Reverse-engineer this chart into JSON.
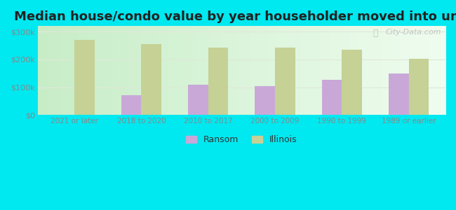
{
  "categories": [
    "2021 or later",
    "2018 to 2020",
    "2010 to 2017",
    "2000 to 2009",
    "1990 to 1999",
    "1989 or earlier"
  ],
  "ransom": [
    null,
    70000,
    110000,
    103000,
    127000,
    150000
  ],
  "illinois": [
    270000,
    255000,
    243000,
    243000,
    235000,
    202000
  ],
  "ransom_color": "#c9a8d8",
  "illinois_color": "#c5d195",
  "title": "Median house/condo value by year householder moved into unit",
  "legend_ransom": "Ransom",
  "legend_illinois": "Illinois",
  "yticks": [
    0,
    100000,
    200000,
    300000
  ],
  "ytick_labels": [
    "$0",
    "$100k",
    "$200k",
    "$300k"
  ],
  "ylim": [
    0,
    320000
  ],
  "background_outer": "#00e8f0",
  "bar_width": 0.3,
  "title_fontsize": 13,
  "watermark": "City-Data.com",
  "grid_color": "#e0e8d8",
  "tick_color": "#888888"
}
